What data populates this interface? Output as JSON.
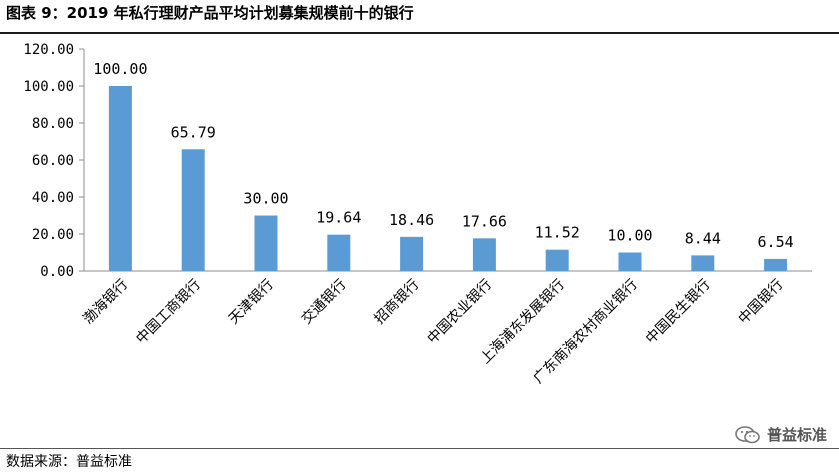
{
  "header": {
    "title": "图表 9：2019 年私行理财产品平均计划募集规模前十的银行"
  },
  "footer": {
    "source": "数据来源：普益标准",
    "watermark": "普益标准"
  },
  "chart_data": {
    "type": "bar",
    "title": "图表 9：2019 年私行理财产品平均计划募集规模前十的银行",
    "xlabel": "",
    "ylabel": "",
    "categories": [
      "渤海银行",
      "中国工商银行",
      "天津银行",
      "交通银行",
      "招商银行",
      "中国农业银行",
      "上海浦东发展银行",
      "广东南海农村商业银行",
      "中国民生银行",
      "中国银行"
    ],
    "values": [
      100.0,
      65.79,
      30.0,
      19.64,
      18.46,
      17.66,
      11.52,
      10.0,
      8.44,
      6.54
    ],
    "value_labels": [
      "100.00",
      "65.79",
      "30.00",
      "19.64",
      "18.46",
      "17.66",
      "11.52",
      "10.00",
      "8.44",
      "6.54"
    ],
    "yticks": [
      "0.00",
      "20.00",
      "40.00",
      "60.00",
      "80.00",
      "100.00",
      "120.00"
    ],
    "ylim": [
      0,
      120
    ],
    "grid": false,
    "legend": "none",
    "bar_color": "#5B9BD5"
  }
}
